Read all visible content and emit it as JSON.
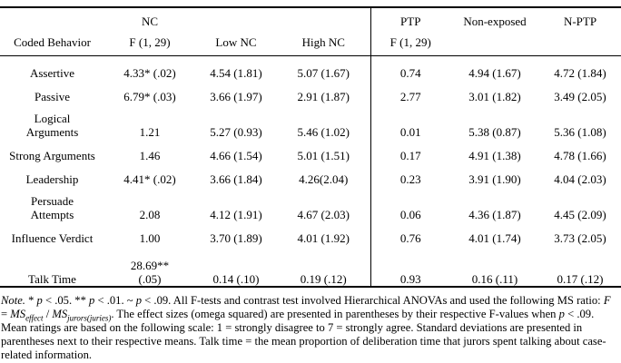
{
  "table": {
    "header_row1": {
      "c0": "",
      "c1": "NC",
      "c2": "",
      "c3": "",
      "c4": "PTP",
      "c5": "Non-exposed",
      "c6": "N-PTP"
    },
    "header_row2": {
      "c0": "Coded Behavior",
      "c1": "F (1, 29)",
      "c2": "Low NC",
      "c3": "High NC",
      "c4": "F (1, 29)",
      "c5": "",
      "c6": ""
    },
    "rows": [
      {
        "c0": "Assertive",
        "c1": "4.33* (.02)",
        "c2": "4.54 (1.81)",
        "c3": "5.07 (1.67)",
        "c4": "0.74",
        "c5": "4.94 (1.67)",
        "c6": "4.72 (1.84)"
      },
      {
        "c0": "Passive",
        "c1": "6.79* (.03)",
        "c2": "3.66 (1.97)",
        "c3": "2.91 (1.87)",
        "c4": "2.77",
        "c5": "3.01 (1.82)",
        "c6": "3.49 (2.05)"
      },
      {
        "c0": "Logical\nArguments",
        "c1": "1.21",
        "c2": "5.27 (0.93)",
        "c3": "5.46 (1.02)",
        "c4": "0.01",
        "c5": "5.38 (0.87)",
        "c6": "5.36 (1.08)"
      },
      {
        "c0": "Strong Arguments",
        "c1": "1.46",
        "c2": "4.66 (1.54)",
        "c3": "5.01 (1.51)",
        "c4": "0.17",
        "c5": "4.91 (1.38)",
        "c6": "4.78 (1.66)"
      },
      {
        "c0": "Leadership",
        "c1": "4.41* (.02)",
        "c2": "3.66 (1.84)",
        "c3": "4.26(2.04)",
        "c4": "0.23",
        "c5": "3.91 (1.90)",
        "c6": "4.04 (2.03)"
      },
      {
        "c0": "Persuade\nAttempts",
        "c1": "2.08",
        "c2": "4.12 (1.91)",
        "c3": "4.67 (2.03)",
        "c4": "0.06",
        "c5": "4.36 (1.87)",
        "c6": "4.45 (2.09)"
      },
      {
        "c0": "Influence Verdict",
        "c1": "1.00",
        "c2": "3.70 (1.89)",
        "c3": "4.01 (1.92)",
        "c4": "0.76",
        "c5": "4.01 (1.74)",
        "c6": "3.73 (2.05)"
      },
      {
        "c0": "Talk Time",
        "c1": "28.69**\n(.05)",
        "c2": "0.14 (.10)",
        "c3": "0.19 (.12)",
        "c4": "0.93",
        "c5": "0.16 (.11)",
        "c6": "0.17 (.12)"
      }
    ]
  },
  "note": {
    "segments": [
      {
        "t": "Note.",
        "i": true
      },
      {
        "t": " * "
      },
      {
        "t": "p",
        "i": true
      },
      {
        "t": " < .05. ** "
      },
      {
        "t": "p",
        "i": true
      },
      {
        "t": " < .01. ~ "
      },
      {
        "t": "p",
        "i": true
      },
      {
        "t": " < .09. All F-tests and contrast test involved Hierarchical ANOVAs and used the following MS ratio: "
      },
      {
        "t": "F",
        "i": true
      },
      {
        "t": " = "
      },
      {
        "t": "MS",
        "i": true
      },
      {
        "t": "effect",
        "i": true,
        "sub": true
      },
      {
        "t": " / "
      },
      {
        "t": "MS",
        "i": true
      },
      {
        "t": "jurors(juries)",
        "i": true,
        "sub": true
      },
      {
        "t": ". The effect sizes (omega squared) are presented in parentheses by their respective F-values when "
      },
      {
        "t": "p",
        "i": true
      },
      {
        "t": " < .09. Mean ratings are based on the following scale: 1 = strongly disagree to 7 = strongly agree. Standard deviations are presented in parentheses next to their respective means. Talk time = the mean proportion of deliberation time that jurors spent talking about case-related information."
      }
    ]
  }
}
